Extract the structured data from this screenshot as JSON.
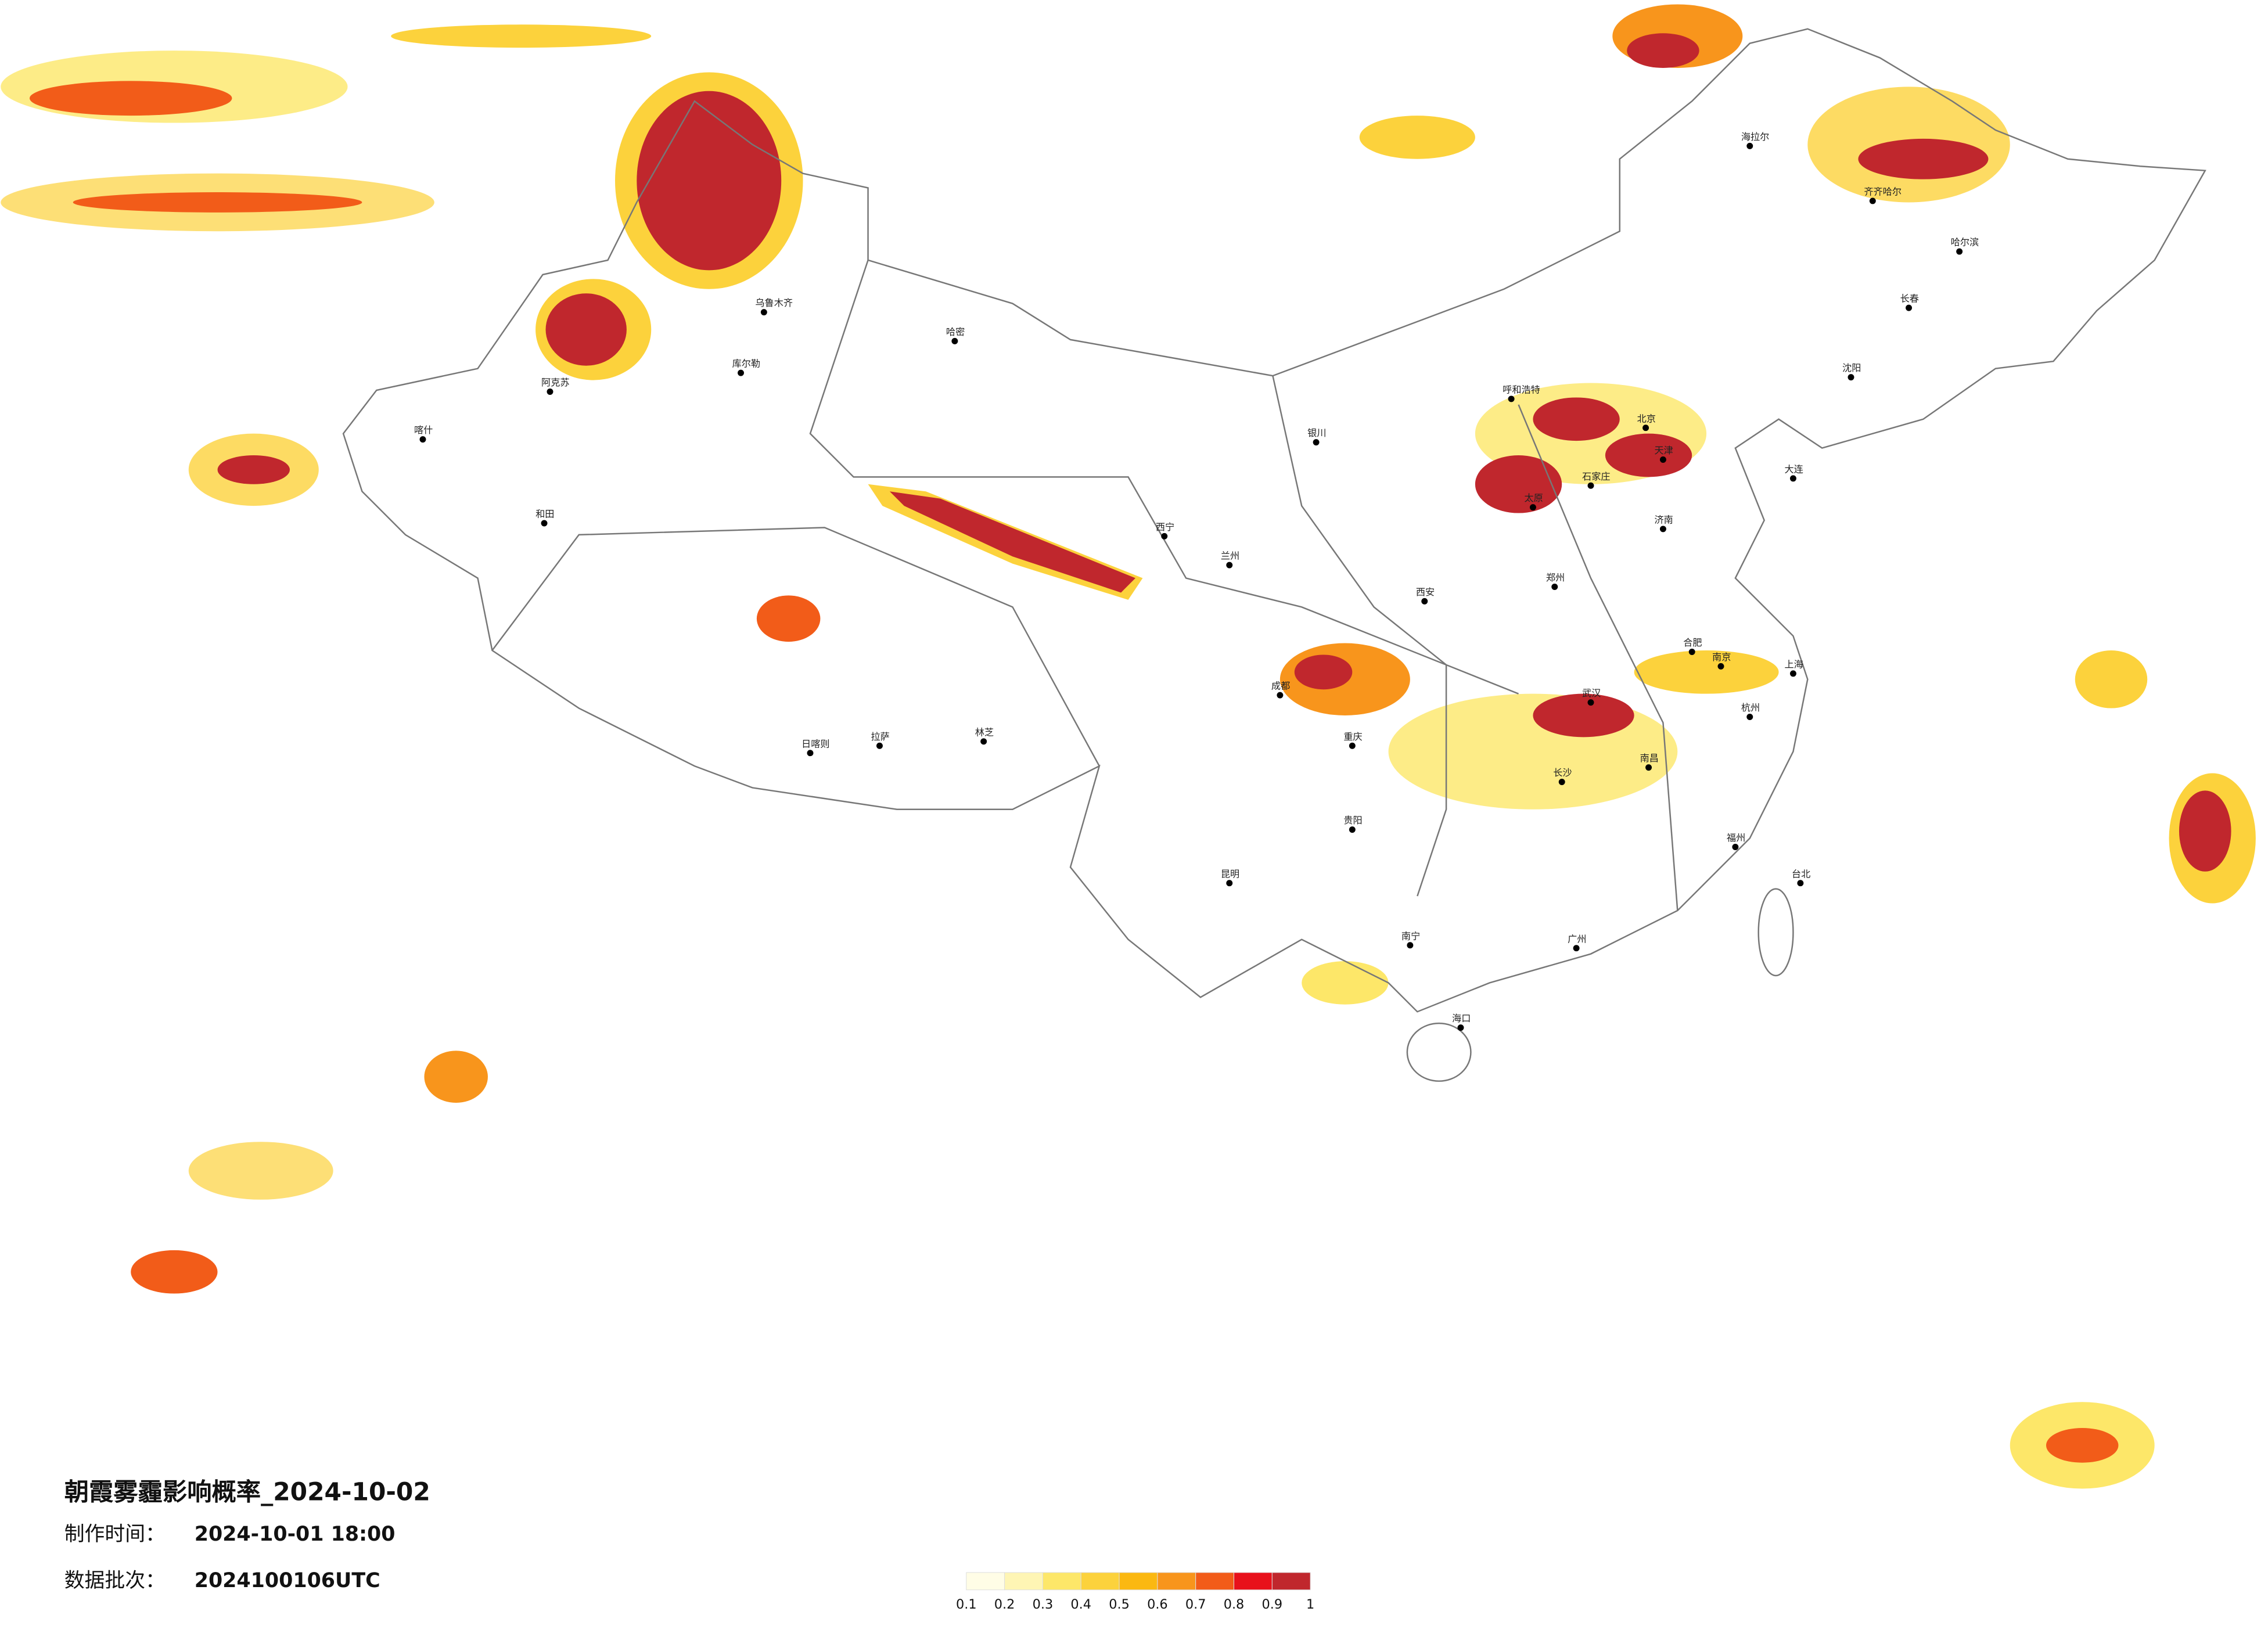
{
  "title": "朝霞雾霾影响概率_2024-10-02",
  "made_time_label": "制作时间：",
  "made_time": "2024-10-01 18:00",
  "batch_label": "数据批次：",
  "batch": "2024100106UTC",
  "legend": {
    "colors": [
      "#fffde6",
      "#fef5b4",
      "#fde769",
      "#fcd23c",
      "#fbb811",
      "#f8951c",
      "#f25c19",
      "#e8111b",
      "#c0272d"
    ],
    "ticks": [
      0.1,
      0.2,
      0.3,
      0.4,
      0.5,
      0.6,
      0.7,
      0.8,
      0.9,
      1
    ]
  },
  "cities": [
    "乌鲁木齐",
    "阿克苏",
    "和田",
    "喀什",
    "库尔勒",
    "哈密",
    "拉萨",
    "日喀则",
    "林芝",
    "西宁",
    "兰州",
    "银川",
    "北京",
    "天津",
    "石家庄",
    "太原",
    "济南",
    "郑州",
    "西安",
    "武汉",
    "长沙",
    "南昌",
    "合肥",
    "南京",
    "上海",
    "杭州",
    "福州",
    "广州",
    "南宁",
    "贵阳",
    "昆明",
    "成都",
    "重庆",
    "哈尔滨",
    "长春",
    "沈阳",
    "呼和浩特",
    "海口",
    "台北",
    "海拉尔",
    "齐齐哈尔",
    "大连"
  ]
}
